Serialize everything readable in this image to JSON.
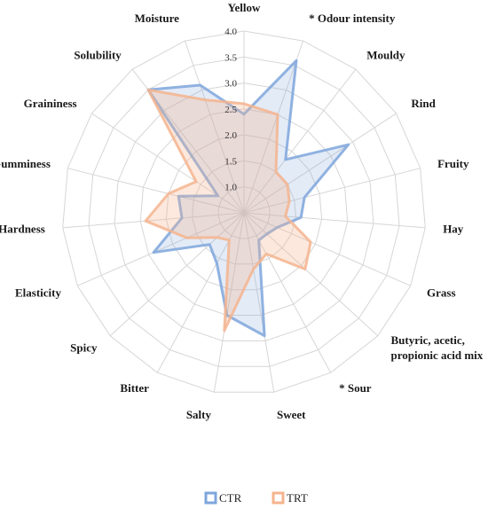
{
  "chart_data": {
    "type": "radar",
    "categories": [
      "Yellow",
      "* Odour intensity",
      "Mouldy",
      "Rind",
      "Fruity",
      "Hay",
      "Grass",
      "Butyric, acetic, propionic acid mix",
      "* Sour",
      "Sweet",
      "Salty",
      "Bitter",
      "Spicy",
      "Elasticity",
      "Hardness",
      "Gumminess",
      "Graininess",
      "Solubility",
      "Moisture"
    ],
    "category_lines": [
      [
        "Yellow"
      ],
      [
        "* Odour intensity"
      ],
      [
        "Mouldy"
      ],
      [
        "Rind"
      ],
      [
        "Fruity"
      ],
      [
        "Hay"
      ],
      [
        "Grass"
      ],
      [
        "Butyric, acetic,",
        "propionic acid mix"
      ],
      [
        "* Sour"
      ],
      [
        "Sweet"
      ],
      [
        "Salty"
      ],
      [
        "Bitter"
      ],
      [
        "Spicy"
      ],
      [
        "Elasticity"
      ],
      [
        "Hardness"
      ],
      [
        "Gumminess"
      ],
      [
        "Graininess"
      ],
      [
        "Solubility"
      ],
      [
        "Moisture"
      ]
    ],
    "series": [
      {
        "name": "CTR",
        "color": "#7EA6DC",
        "values": [
          2.4,
          3.6,
          1.8,
          2.9,
          1.7,
          1.6,
          1.2,
          1.1,
          1.1,
          2.9,
          2.5,
          1.6,
          1.4,
          2.4,
          1.7,
          1.8,
          1.1,
          3.5,
          3.1
        ]
      },
      {
        "name": "TRT",
        "color": "#F5B48E",
        "values": [
          2.6,
          2.5,
          1.5,
          1.5,
          1.4,
          1.3,
          1.9,
          2.1,
          1.4,
          1.6,
          2.8,
          1.1,
          1.2,
          1.7,
          2.4,
          2.0,
          1.6,
          3.5,
          2.8
        ]
      }
    ],
    "r_ticks": [
      1.0,
      1.5,
      2.0,
      2.5,
      3.0,
      3.5,
      4.0
    ],
    "r_tick_labels": [
      "1.0",
      "1.5",
      "2.0",
      "2.5",
      "3.0",
      "3.5",
      "4.0"
    ],
    "r_range": [
      0.5,
      4.0
    ],
    "legend_position": "bottom",
    "grid": true
  }
}
